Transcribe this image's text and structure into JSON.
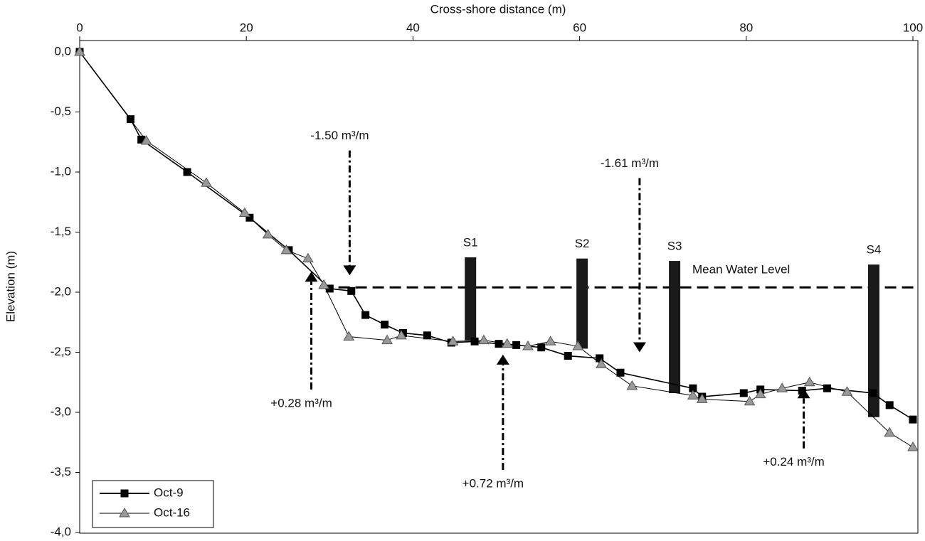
{
  "chart_data": {
    "type": "line",
    "title": "Cross-shore distance (m)",
    "y_label": "Elevation (m)",
    "xlim": [
      0,
      100
    ],
    "xticks": [
      0,
      20,
      40,
      60,
      80,
      100
    ],
    "ylim": [
      -4,
      0
    ],
    "yticks": [
      {
        "value": 0,
        "label": "0,0"
      },
      {
        "value": -0.5,
        "label": "-0,5"
      },
      {
        "value": -1,
        "label": "-1,0"
      },
      {
        "value": -1.5,
        "label": "-1,5"
      },
      {
        "value": -2,
        "label": "-2,0"
      },
      {
        "value": -2.5,
        "label": "-2,5"
      },
      {
        "value": -3,
        "label": "-3,0"
      },
      {
        "value": -3.5,
        "label": "-3,5"
      },
      {
        "value": -4,
        "label": "-4,0"
      }
    ],
    "legend": "bottom-left",
    "series": [
      {
        "name": "Oct-9",
        "color": "#000000",
        "marker": "square",
        "x": [
          0,
          6.1,
          7.4,
          12.9,
          20.4,
          25.1,
          30.0,
          32.6,
          34.3,
          36.6,
          38.8,
          41.7,
          44.6,
          47.4,
          50.3,
          52.4,
          55.4,
          58.6,
          62.4,
          64.9,
          73.6,
          74.7,
          79.7,
          81.7,
          86.7,
          89.7,
          95.2,
          97.2,
          100
        ],
        "values": [
          0,
          -0.56,
          -0.73,
          -1.0,
          -1.38,
          -1.65,
          -1.97,
          -1.99,
          -2.19,
          -2.27,
          -2.34,
          -2.36,
          -2.42,
          -2.41,
          -2.43,
          -2.44,
          -2.46,
          -2.53,
          -2.55,
          -2.67,
          -2.8,
          -2.87,
          -2.84,
          -2.81,
          -2.82,
          -2.8,
          -2.84,
          -2.94,
          -3.06
        ]
      },
      {
        "name": "Oct-16",
        "color": "#999999",
        "marker": "triangle",
        "x": [
          0,
          8.0,
          15.2,
          19.8,
          22.6,
          24.8,
          27.4,
          29.3,
          32.3,
          36.9,
          38.6,
          44.8,
          48.5,
          51.3,
          53.8,
          56.5,
          59.8,
          62.6,
          66.3,
          73.6,
          74.7,
          80.4,
          81.7,
          84.3,
          87.6,
          92.1,
          97.2,
          100
        ],
        "values": [
          0,
          -0.74,
          -1.09,
          -1.34,
          -1.52,
          -1.65,
          -1.72,
          -1.94,
          -2.37,
          -2.4,
          -2.36,
          -2.41,
          -2.4,
          -2.43,
          -2.45,
          -2.41,
          -2.45,
          -2.6,
          -2.78,
          -2.86,
          -2.89,
          -2.91,
          -2.85,
          -2.8,
          -2.75,
          -2.83,
          -3.17,
          -3.29
        ]
      }
    ],
    "mean_water_level": {
      "label": "Mean Water Level",
      "value": -1.96
    },
    "sensors": [
      {
        "label": "S1",
        "x": 46.9,
        "top": -1.71,
        "bottom": -2.4
      },
      {
        "label": "S2",
        "x": 60.3,
        "top": -1.72,
        "bottom": -2.47
      },
      {
        "label": "S3",
        "x": 71.4,
        "top": -1.74,
        "bottom": -2.84
      },
      {
        "label": "S4",
        "x": 95.3,
        "top": -1.77,
        "bottom": -3.04
      }
    ],
    "annotations": [
      {
        "text": "-1.50 m³/m",
        "x": 32.4,
        "from": -0.82,
        "to": -1.86
      },
      {
        "text": "-1.61 m³/m",
        "x": 67.2,
        "from": -1.05,
        "to": -2.5
      },
      {
        "text": "+0.28 m³/m",
        "x": 27.8,
        "from": -2.81,
        "to": -1.83
      },
      {
        "text": "+0.72 m³/m",
        "x": 50.8,
        "from": -3.48,
        "to": -2.52
      },
      {
        "text": "+0.24 m³/m",
        "x": 86.9,
        "from": -3.3,
        "to": -2.8
      }
    ]
  }
}
